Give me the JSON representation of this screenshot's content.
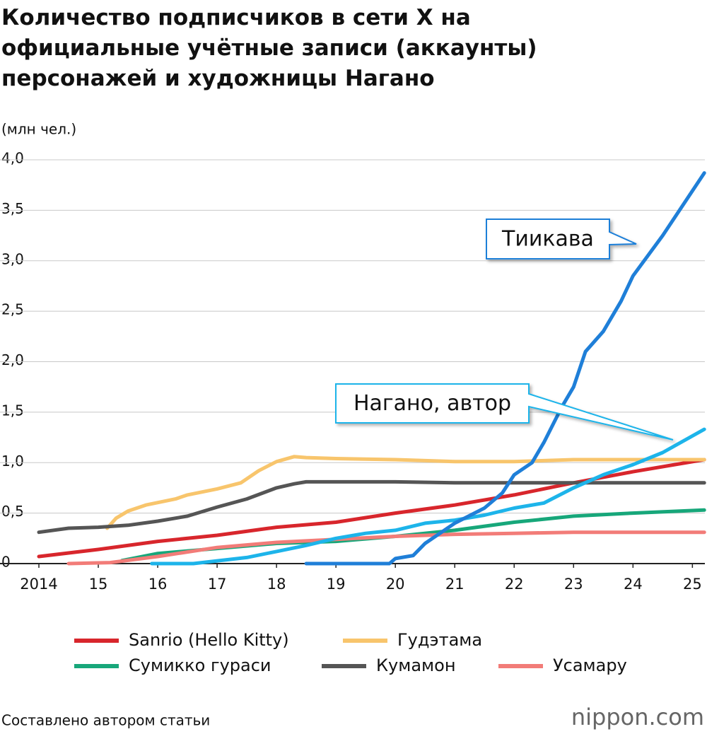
{
  "chart_data": {
    "type": "line",
    "title": "Количество подписчиков в сети X на официальные учётные записи (аккаунты) персонажей и художницы Нагано",
    "y_label": "(млн чел.)",
    "source": "Составлено автором статьи",
    "logo": "nippon.com",
    "grid": true,
    "xlim": [
      2014,
      2025.21
    ],
    "ylim": [
      0,
      4
    ],
    "xticks": [
      2014,
      {
        "value": 2015,
        "label": "15"
      },
      {
        "value": 2016,
        "label": "16"
      },
      {
        "value": 2017,
        "label": "17"
      },
      {
        "value": 2018,
        "label": "18"
      },
      {
        "value": 2019,
        "label": "19"
      },
      {
        "value": 2020,
        "label": "20"
      },
      {
        "value": 2021,
        "label": "21"
      },
      {
        "value": 2022,
        "label": "22"
      },
      {
        "value": 2023,
        "label": "23"
      },
      {
        "value": 2024,
        "label": "24"
      },
      {
        "value": 2025,
        "label": "25"
      }
    ],
    "yticks": [
      0,
      {
        "value": 0.5,
        "label": "0,5"
      },
      {
        "value": 1,
        "label": "1,0"
      },
      {
        "value": 1.5,
        "label": "1,5"
      },
      {
        "value": 2,
        "label": "2,0"
      },
      {
        "value": 2.5,
        "label": "2,5"
      },
      {
        "value": 3,
        "label": "3,0"
      },
      {
        "value": 3.5,
        "label": "3,5"
      },
      {
        "value": 4,
        "label": "4,0"
      }
    ],
    "series": [
      {
        "name": "Sanrio (Hello Kitty)",
        "color": "#d8262c",
        "legend": true,
        "x": [
          2014,
          2015,
          2016,
          2017,
          2018,
          2019,
          2020,
          2021,
          2022,
          2023,
          2024,
          2025.2
        ],
        "values": [
          0.07,
          0.14,
          0.22,
          0.28,
          0.36,
          0.41,
          0.5,
          0.58,
          0.68,
          0.8,
          0.91,
          1.03
        ]
      },
      {
        "name": "Гудэтама",
        "color": "#f8c56c",
        "legend": true,
        "x": [
          2015.15,
          2015.3,
          2015.5,
          2015.8,
          2016.3,
          2016.5,
          2017,
          2017.4,
          2017.7,
          2018,
          2018.3,
          2018.5,
          2019,
          2020,
          2021,
          2022,
          2023,
          2025.2
        ],
        "values": [
          0.35,
          0.45,
          0.52,
          0.58,
          0.64,
          0.68,
          0.74,
          0.8,
          0.92,
          1.01,
          1.06,
          1.05,
          1.04,
          1.03,
          1.01,
          1.01,
          1.03,
          1.03
        ]
      },
      {
        "name": "Сумикко гураси",
        "color": "#17a77a",
        "legend": true,
        "x": [
          2015.4,
          2016,
          2017,
          2018,
          2019,
          2020,
          2021,
          2022,
          2023,
          2024,
          2025.2
        ],
        "values": [
          0.03,
          0.1,
          0.15,
          0.2,
          0.22,
          0.27,
          0.33,
          0.41,
          0.47,
          0.5,
          0.53
        ]
      },
      {
        "name": "Кумамон",
        "color": "#555555",
        "legend": true,
        "x": [
          2014,
          2014.5,
          2015,
          2015.5,
          2016,
          2016.5,
          2017,
          2017.5,
          2018,
          2018.3,
          2018.5,
          2019,
          2020,
          2021,
          2025.2
        ],
        "values": [
          0.31,
          0.35,
          0.36,
          0.38,
          0.42,
          0.47,
          0.56,
          0.64,
          0.75,
          0.79,
          0.81,
          0.81,
          0.81,
          0.8,
          0.8
        ]
      },
      {
        "name": "Усамару",
        "color": "#f27c78",
        "legend": true,
        "x": [
          2014.5,
          2015.2,
          2016,
          2017,
          2018,
          2019,
          2020,
          2021,
          2022,
          2023,
          2025.2
        ],
        "values": [
          0,
          0.01,
          0.07,
          0.16,
          0.21,
          0.24,
          0.27,
          0.29,
          0.3,
          0.31,
          0.31
        ]
      },
      {
        "name": "Нагано, автор",
        "color": "#1db4ea",
        "legend": false,
        "x": [
          2015.9,
          2016.6,
          2017.5,
          2018,
          2018.5,
          2019,
          2019.5,
          2020,
          2020.5,
          2021,
          2021.5,
          2022,
          2022.5,
          2023,
          2023.5,
          2024,
          2024.5,
          2025.2
        ],
        "values": [
          0,
          0,
          0.06,
          0.12,
          0.18,
          0.25,
          0.3,
          0.33,
          0.4,
          0.43,
          0.48,
          0.55,
          0.6,
          0.75,
          0.88,
          0.98,
          1.1,
          1.33
        ]
      },
      {
        "name": "Тиикава",
        "color": "#1f7fd8",
        "legend": false,
        "x": [
          2018.5,
          2019.9,
          2020,
          2020.3,
          2020.5,
          2021,
          2021.5,
          2021.8,
          2022,
          2022.3,
          2022.5,
          2022.8,
          2023,
          2023.2,
          2023.5,
          2023.8,
          2024,
          2024.5,
          2025.2
        ],
        "values": [
          0,
          0,
          0.05,
          0.08,
          0.2,
          0.4,
          0.55,
          0.7,
          0.88,
          1.0,
          1.2,
          1.55,
          1.75,
          2.1,
          2.3,
          2.6,
          2.85,
          3.25,
          3.87
        ]
      }
    ]
  }
}
